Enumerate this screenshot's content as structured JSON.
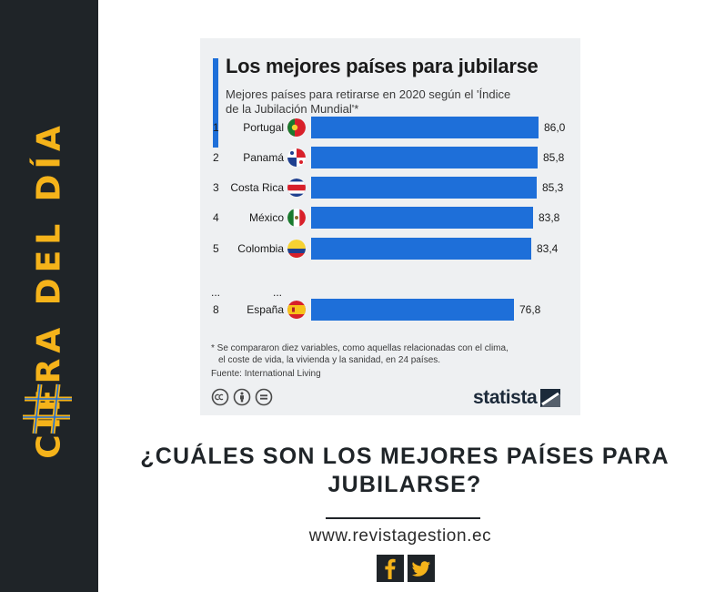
{
  "side_label": "CIFRA DEL DÍA",
  "chart_data": {
    "type": "bar",
    "orientation": "horizontal",
    "title": "Los mejores países para jubilarse",
    "subtitle": "Mejores países para retirarse en 2020 según el 'Índice de la Jubilación Mundial'*",
    "rows": [
      {
        "rank": "1",
        "country": "Portugal",
        "value": 86.0,
        "label": "86,0",
        "flag": "portugal-flag-icon"
      },
      {
        "rank": "2",
        "country": "Panamá",
        "value": 85.8,
        "label": "85,8",
        "flag": "panama-flag-icon"
      },
      {
        "rank": "3",
        "country": "Costa Rica",
        "value": 85.3,
        "label": "85,3",
        "flag": "costa-rica-flag-icon"
      },
      {
        "rank": "4",
        "country": "México",
        "value": 83.8,
        "label": "83,8",
        "flag": "mexico-flag-icon"
      },
      {
        "rank": "5",
        "country": "Colombia",
        "value": 83.4,
        "label": "83,4",
        "flag": "colombia-flag-icon"
      },
      {
        "rank": "8",
        "country": "España",
        "value": 76.8,
        "label": "76,8",
        "flag": "spain-flag-icon"
      }
    ],
    "ellipsis": "...",
    "bar_color": "#1e6fd9",
    "footnote_line1": "* Se compararon diez variables, como aquellas relacionadas con el clima,",
    "footnote_line2": "el coste de vida, la vivienda y la sanidad, en 24 países.",
    "source": "Fuente: International Living",
    "brand": "statista"
  },
  "headline_line1": "¿CUÁLES SON LOS MEJORES PAÍSES PARA",
  "headline_line2": "JUBILARSE?",
  "site_url": "www.revistagestion.ec",
  "colors": {
    "band": "#1f2428",
    "accent": "#f5b31a",
    "bar": "#1e6fd9"
  }
}
